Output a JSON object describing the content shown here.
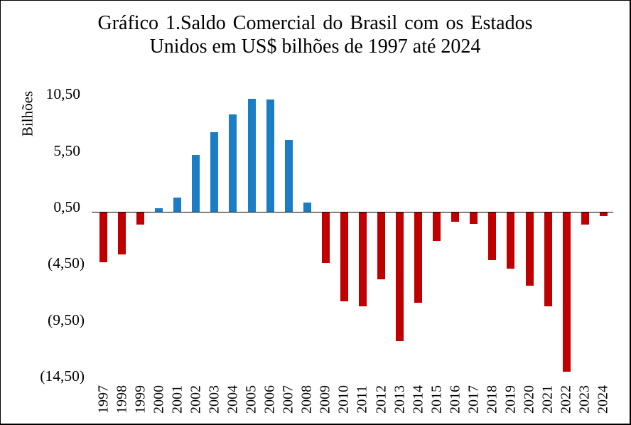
{
  "chart_data": {
    "type": "bar",
    "title_line1": "Gráfico 1.Saldo Comercial do Brasil com os Estados",
    "title_line2": "Unidos em US$ bilhões de 1997 até 2024",
    "y_axis": {
      "title": "Bilhões",
      "tick_labels": [
        "10,50",
        "5,50",
        "0,50",
        "(4,50)",
        "(9,50)",
        "(14,50)"
      ],
      "tick_values": [
        10.5,
        5.5,
        0.5,
        -4.5,
        -9.5,
        -14.5
      ]
    },
    "categories": [
      "1997",
      "1998",
      "1999",
      "2000",
      "2001",
      "2002",
      "2003",
      "2004",
      "2005",
      "2006",
      "2007",
      "2008",
      "2009",
      "2010",
      "2011",
      "2012",
      "2013",
      "2014",
      "2015",
      "2016",
      "2017",
      "2018",
      "2019",
      "2020",
      "2021",
      "2022",
      "2023",
      "2024"
    ],
    "values": [
      -4.4,
      -3.7,
      -1.1,
      0.35,
      1.3,
      5.1,
      7.1,
      8.7,
      10.1,
      10.0,
      6.4,
      0.9,
      -4.5,
      -7.9,
      -8.3,
      -5.9,
      -11.4,
      -8.0,
      -2.5,
      -0.8,
      -1.0,
      -4.2,
      -5.0,
      -6.5,
      -8.3,
      -14.1,
      -1.1,
      -0.3
    ],
    "colors": {
      "positive": "#1B7DC5",
      "negative": "#C00000"
    },
    "grid": false,
    "legend": false
  }
}
